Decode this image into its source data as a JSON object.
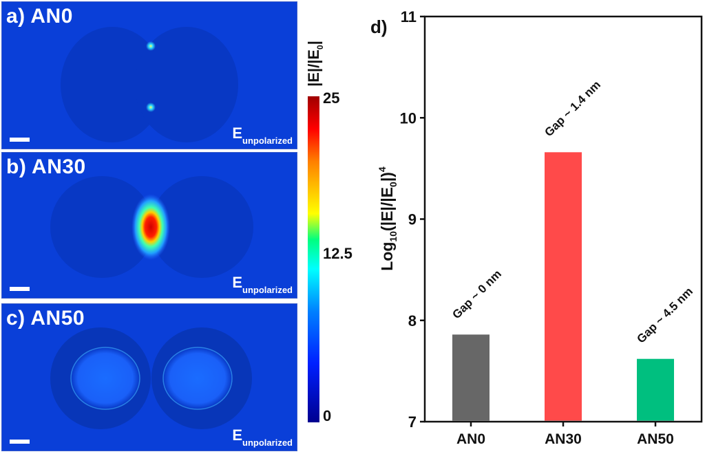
{
  "panels": [
    {
      "id": "a",
      "label": "a) AN0",
      "polarization": {
        "main": "E",
        "sub": "unpolarized"
      }
    },
    {
      "id": "b",
      "label": "b) AN30",
      "polarization": {
        "main": "E",
        "sub": "unpolarized"
      }
    },
    {
      "id": "c",
      "label": "c) AN50",
      "polarization": {
        "main": "E",
        "sub": "unpolarized"
      }
    }
  ],
  "colorbar": {
    "title_main": "|E|/|E",
    "title_sub": "0",
    "title_end": "|",
    "ticks": [
      "25",
      "12.5",
      "0"
    ],
    "range": [
      0,
      25
    ]
  },
  "chart_data": {
    "type": "bar",
    "panel_label": "d)",
    "categories": [
      "AN0",
      "AN30",
      "AN50"
    ],
    "values": [
      7.86,
      9.66,
      7.62
    ],
    "colors": [
      "#676767",
      "#ff4a4a",
      "#00bf7f"
    ],
    "annotations": [
      "Gap ~ 0 nm",
      "Gap ~ 1.4 nm",
      "Gap ~ 4.5 nm"
    ],
    "title": "",
    "xlabel": "",
    "ylabel": "Log10(|E|/|E0|)^4",
    "ylabel_parts": {
      "pre": "Log",
      "sub1": "10",
      "mid": "(|E|/|E",
      "sub2": "0",
      "post": "|)",
      "sup": "4"
    },
    "ylim": [
      7,
      11
    ],
    "yticks": [
      "7",
      "8",
      "9",
      "10",
      "11"
    ],
    "grid": false
  }
}
